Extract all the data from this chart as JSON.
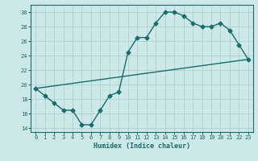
{
  "title": "",
  "xlabel": "Humidex (Indice chaleur)",
  "ylabel": "",
  "bg_color": "#cce8e8",
  "grid_color": "#b0d0d0",
  "line_color": "#1a6b6b",
  "xlim": [
    -0.5,
    23.5
  ],
  "ylim": [
    13.5,
    31.0
  ],
  "xticks": [
    0,
    1,
    2,
    3,
    4,
    5,
    6,
    7,
    8,
    9,
    10,
    11,
    12,
    13,
    14,
    15,
    16,
    17,
    18,
    19,
    20,
    21,
    22,
    23
  ],
  "yticks": [
    14,
    16,
    18,
    20,
    22,
    24,
    26,
    28,
    30
  ],
  "line1_x": [
    0,
    1,
    2,
    3,
    4,
    5,
    6,
    7,
    8,
    9,
    10,
    11,
    12,
    13,
    14,
    15,
    16,
    17,
    18,
    19,
    20,
    21,
    22,
    23
  ],
  "line1_y": [
    19.5,
    18.5,
    17.5,
    16.5,
    16.5,
    14.5,
    14.5,
    16.5,
    18.5,
    19.0,
    24.5,
    26.5,
    26.5,
    28.5,
    30.0,
    30.0,
    29.5,
    28.5,
    28.0,
    28.0,
    28.5,
    27.5,
    25.5,
    23.5
  ],
  "line2_x": [
    0,
    23
  ],
  "line2_y": [
    19.5,
    23.5
  ],
  "marker": "D",
  "markersize": 2.5,
  "linewidth": 1.0
}
